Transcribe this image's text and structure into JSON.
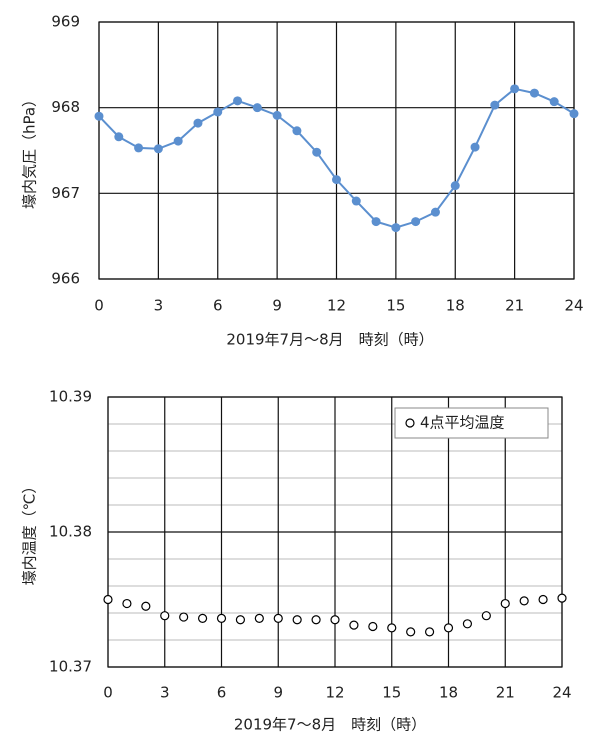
{
  "chart_data": [
    {
      "type": "line",
      "y_label": "壕内気圧（hPa）",
      "x_label": "2019年7月～8月　時刻（時）",
      "x": [
        0,
        1,
        2,
        3,
        4,
        5,
        6,
        7,
        8,
        9,
        10,
        11,
        12,
        13,
        14,
        15,
        16,
        17,
        18,
        19,
        20,
        21,
        22,
        23,
        24
      ],
      "values": [
        967.9,
        967.66,
        967.53,
        967.52,
        967.61,
        967.82,
        967.95,
        968.08,
        968.0,
        967.91,
        967.73,
        967.48,
        967.16,
        966.91,
        966.67,
        966.6,
        966.67,
        966.78,
        967.09,
        967.54,
        968.03,
        968.22,
        968.17,
        968.07,
        967.93
      ],
      "color": "#5b8fcf",
      "xlim": [
        0,
        24
      ],
      "xticks": [
        0,
        3,
        6,
        9,
        12,
        15,
        18,
        21,
        24
      ],
      "ylim": [
        966,
        969
      ],
      "yticks": [
        966,
        967,
        968,
        969
      ],
      "grid": true
    },
    {
      "type": "scatter",
      "y_label": "壕内温度（℃）",
      "x_label": "2019年7～8月　時刻（時）",
      "x": [
        0,
        1,
        2,
        3,
        4,
        5,
        6,
        7,
        8,
        9,
        10,
        11,
        12,
        13,
        14,
        15,
        16,
        17,
        18,
        19,
        20,
        21,
        22,
        23,
        24
      ],
      "series": [
        {
          "name": "4点平均温度",
          "color": "#000000",
          "values": [
            10.375,
            10.3747,
            10.3745,
            10.3738,
            10.3737,
            10.3736,
            10.3736,
            10.3735,
            10.3736,
            10.3736,
            10.3735,
            10.3735,
            10.3735,
            10.3731,
            10.373,
            10.3729,
            10.3726,
            10.3726,
            10.3729,
            10.3732,
            10.3738,
            10.3747,
            10.3749,
            10.375,
            10.3751
          ]
        }
      ],
      "xlim": [
        0,
        24
      ],
      "xticks": [
        0,
        3,
        6,
        9,
        12,
        15,
        18,
        21,
        24
      ],
      "ylim": [
        10.37,
        10.39
      ],
      "yticks": [
        10.37,
        10.38,
        10.39
      ],
      "grid": true,
      "legend": "upper right"
    }
  ]
}
